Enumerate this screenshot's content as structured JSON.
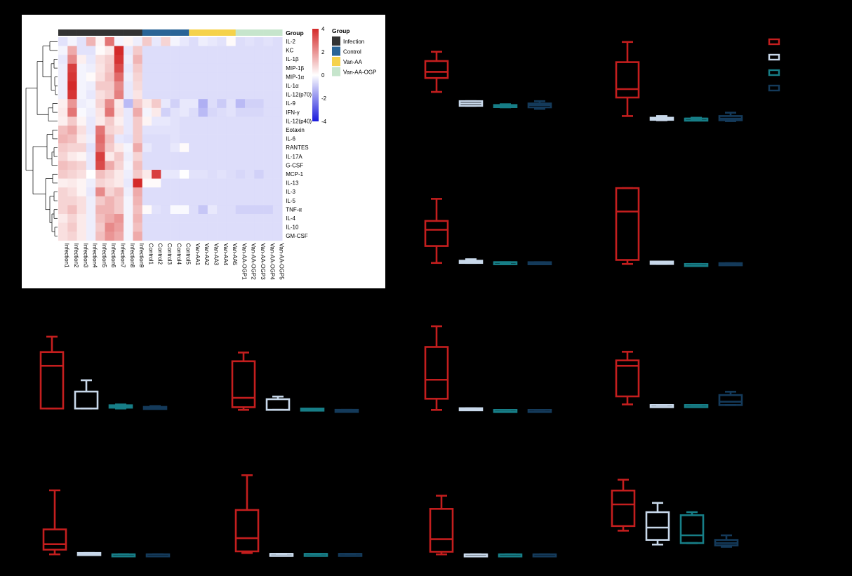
{
  "chart_data": [
    {
      "type": "heatmap",
      "title": "",
      "group_legend_title": "Group",
      "group_track_label": "Group",
      "groups": [
        {
          "name": "Infection",
          "color": "#333333"
        },
        {
          "name": "Control",
          "color": "#2a6496"
        },
        {
          "name": "Van-AA",
          "color": "#f5d24b"
        },
        {
          "name": "Van-AA-OGP",
          "color": "#c6e5cc"
        }
      ],
      "color_scale": {
        "ticks": [
          4,
          2,
          0,
          -2,
          -4
        ],
        "high": "#d42a2a",
        "mid": "#ffffff",
        "low": "#1a1adc"
      },
      "columns": [
        "Infection1",
        "Infection2",
        "Infection3",
        "Infection4",
        "Infection5",
        "Infection6",
        "Infection7",
        "Infection8",
        "Infection9",
        "Control1",
        "Control2",
        "Control3",
        "Control4",
        "Control5",
        "Van-AA1",
        "Van-AA2",
        "Van-AA3",
        "Van-AA4",
        "Van-AA5",
        "Van-AA-OGP1",
        "Van-AA-OGP2",
        "Van-AA-OGP3",
        "Van-AA-OGP4",
        "Van-AA-OGP5"
      ],
      "column_groups": [
        0,
        0,
        0,
        0,
        0,
        0,
        0,
        0,
        0,
        1,
        1,
        1,
        1,
        1,
        2,
        2,
        2,
        2,
        2,
        3,
        3,
        3,
        3,
        3
      ],
      "rows": [
        "IL-2",
        "KC",
        "IL-1β",
        "MIP-1β",
        "MIP-1α",
        "IL-1α",
        "IL-12(p70)",
        "IL-9",
        "IFN-γ",
        "IL-12(p40)",
        "Eotaxin",
        "IL-6",
        "RANTES",
        "IL-17A",
        "G-CSF",
        "MCP-1",
        "IL-13",
        "IL-3",
        "IL-5",
        "TNF-α",
        "IL-4",
        "IL-10",
        "GM-CSF"
      ],
      "values": [
        [
          -0.5,
          -0.2,
          -0.5,
          1.4,
          0.2,
          2.6,
          -0.2,
          0.2,
          -0.3,
          1.0,
          -0.4,
          0.8,
          -0.2,
          -0.4,
          -0.6,
          -0.3,
          -0.4,
          -0.5,
          0.1,
          -0.6,
          -0.5,
          -0.6,
          -0.5,
          -0.6
        ],
        [
          -0.2,
          1.6,
          -0.5,
          -0.5,
          0.1,
          0.4,
          4.0,
          -0.4,
          1.0,
          -0.6,
          -0.6,
          -0.6,
          -0.6,
          -0.6,
          -0.6,
          -0.6,
          -0.6,
          -0.6,
          -0.6,
          -0.6,
          -0.6,
          -0.6,
          -0.6,
          -0.6
        ],
        [
          -0.4,
          2.2,
          0.3,
          -0.4,
          0.6,
          0.9,
          3.8,
          -0.3,
          1.4,
          -0.6,
          -0.6,
          -0.6,
          -0.6,
          -0.6,
          -0.6,
          -0.6,
          -0.6,
          -0.6,
          -0.6,
          -0.6,
          -0.6,
          -0.6,
          -0.6,
          -0.6
        ],
        [
          -0.3,
          3.6,
          -0.2,
          -0.3,
          0.5,
          1.0,
          3.4,
          -0.4,
          1.0,
          -0.6,
          -0.6,
          -0.6,
          -0.6,
          -0.6,
          -0.6,
          -0.6,
          -0.6,
          -0.6,
          -0.6,
          -0.6,
          -0.6,
          -0.6,
          -0.6,
          -0.6
        ],
        [
          -0.3,
          3.8,
          -0.2,
          0.1,
          0.6,
          1.2,
          2.8,
          -0.3,
          0.8,
          -0.6,
          -0.6,
          -0.6,
          -0.6,
          -0.6,
          -0.6,
          -0.6,
          -0.6,
          -0.6,
          -0.6,
          -0.6,
          -0.6,
          -0.6,
          -0.6,
          -0.6
        ],
        [
          -0.3,
          4.0,
          -0.2,
          -0.3,
          1.0,
          1.0,
          2.2,
          -0.4,
          0.7,
          -0.6,
          -0.6,
          -0.6,
          -0.6,
          -0.6,
          -0.6,
          -0.6,
          -0.6,
          -0.6,
          -0.6,
          -0.6,
          -0.6,
          -0.6,
          -0.6,
          -0.6
        ],
        [
          -0.3,
          3.8,
          -0.2,
          -0.4,
          0.6,
          0.9,
          2.4,
          -0.4,
          0.5,
          -0.6,
          -0.6,
          -0.6,
          -0.6,
          -0.6,
          -0.6,
          -0.6,
          -0.6,
          -0.6,
          -0.6,
          -0.6,
          -0.6,
          -0.6,
          -0.6,
          -0.6
        ],
        [
          0.3,
          2.0,
          -0.3,
          -0.2,
          0.8,
          2.2,
          0.4,
          -1.2,
          1.0,
          0.4,
          1.0,
          -0.4,
          -0.8,
          -0.4,
          -0.4,
          -1.4,
          -0.6,
          -0.9,
          -0.5,
          -1.2,
          -0.8,
          -0.8,
          -0.6,
          -0.6
        ],
        [
          0.4,
          2.6,
          -0.1,
          -0.3,
          0.5,
          2.6,
          0.5,
          -0.4,
          1.6,
          -0.2,
          0.4,
          -0.8,
          -0.5,
          -0.4,
          -0.6,
          -1.2,
          -0.7,
          -0.6,
          -0.5,
          -0.7,
          -0.7,
          -0.7,
          -0.6,
          -0.6
        ],
        [
          0.3,
          1.0,
          0.2,
          -0.4,
          0.4,
          1.0,
          0.3,
          -0.4,
          1.0,
          0.2,
          -0.4,
          -0.4,
          -0.5,
          -0.6,
          -0.6,
          -0.6,
          -0.6,
          -0.6,
          -0.6,
          -0.6,
          -0.6,
          -0.6,
          -0.6,
          -0.6
        ],
        [
          1.2,
          1.6,
          0.6,
          -0.4,
          2.6,
          0.8,
          0.6,
          -0.4,
          1.0,
          -0.5,
          -0.5,
          -0.5,
          -0.5,
          -0.6,
          -0.6,
          -0.6,
          -0.6,
          -0.6,
          -0.6,
          -0.6,
          -0.6,
          -0.6,
          -0.6,
          -0.6
        ],
        [
          1.4,
          1.2,
          0.4,
          -0.3,
          2.8,
          1.2,
          -0.4,
          -0.5,
          1.0,
          -0.6,
          -0.6,
          -0.6,
          -0.5,
          -0.6,
          -0.6,
          -0.6,
          -0.6,
          -0.6,
          -0.6,
          -0.6,
          -0.6,
          -0.6,
          -0.6,
          -0.6
        ],
        [
          1.0,
          0.8,
          0.8,
          -0.5,
          2.6,
          1.0,
          0.4,
          -0.2,
          1.6,
          -0.4,
          -0.6,
          -0.6,
          -0.4,
          0.1,
          -0.6,
          -0.6,
          -0.6,
          -0.6,
          -0.6,
          -0.6,
          -0.6,
          -0.6,
          -0.6,
          -0.6
        ],
        [
          0.8,
          0.4,
          0.2,
          -0.4,
          3.6,
          0.4,
          1.0,
          -0.3,
          0.8,
          -0.6,
          -0.6,
          -0.6,
          -0.6,
          -0.6,
          -0.6,
          -0.6,
          -0.6,
          -0.6,
          -0.6,
          -0.6,
          -0.6,
          -0.6,
          -0.6,
          -0.6
        ],
        [
          1.2,
          1.0,
          0.8,
          -0.4,
          3.4,
          1.6,
          0.8,
          -0.2,
          1.2,
          -0.6,
          -0.6,
          -0.6,
          -0.6,
          -0.6,
          -0.6,
          -0.6,
          -0.6,
          -0.6,
          -0.6,
          -0.6,
          -0.6,
          -0.6,
          -0.6,
          -0.6
        ],
        [
          1.0,
          0.8,
          0.6,
          0.0,
          1.2,
          0.8,
          0.4,
          -0.3,
          1.0,
          0.4,
          3.6,
          -0.4,
          -0.4,
          0.0,
          -0.5,
          -0.5,
          -0.6,
          -0.5,
          -0.6,
          -0.7,
          -0.6,
          -0.8,
          -0.6,
          -0.6
        ],
        [
          0.3,
          0.4,
          0.2,
          -0.3,
          0.8,
          0.6,
          0.4,
          -0.4,
          4.0,
          0.1,
          0.1,
          -0.6,
          -0.6,
          -0.6,
          -0.6,
          -0.6,
          -0.6,
          -0.6,
          -0.6,
          -0.6,
          -0.6,
          -0.6,
          -0.6,
          -0.6
        ],
        [
          0.8,
          0.6,
          0.2,
          -0.4,
          2.2,
          0.8,
          1.2,
          -0.3,
          1.6,
          -0.6,
          -0.6,
          -0.6,
          -0.6,
          -0.6,
          -0.6,
          -0.6,
          -0.6,
          -0.6,
          -0.6,
          -0.6,
          -0.6,
          -0.6,
          -0.6,
          -0.6
        ],
        [
          0.8,
          0.8,
          0.6,
          -0.3,
          1.0,
          1.4,
          1.0,
          -0.2,
          1.4,
          -0.6,
          -0.6,
          -0.6,
          -0.6,
          -0.6,
          -0.6,
          -0.6,
          -0.6,
          -0.6,
          -0.6,
          -0.6,
          -0.6,
          -0.6,
          -0.6,
          -0.6
        ],
        [
          0.8,
          1.2,
          0.6,
          -0.3,
          1.4,
          1.4,
          1.0,
          -0.2,
          1.2,
          0.1,
          -0.5,
          -0.6,
          -0.1,
          -0.1,
          -0.6,
          -1.0,
          -0.4,
          -0.6,
          -0.6,
          -0.8,
          -0.8,
          -0.8,
          -0.8,
          -0.6
        ],
        [
          0.4,
          0.8,
          0.4,
          -0.3,
          1.2,
          1.6,
          2.0,
          -0.2,
          1.4,
          -0.6,
          -0.6,
          -0.6,
          -0.6,
          -0.6,
          -0.6,
          -0.6,
          -0.6,
          -0.6,
          -0.6,
          -0.6,
          -0.6,
          -0.6,
          -0.6,
          -0.6
        ],
        [
          0.6,
          1.0,
          0.4,
          -0.3,
          1.0,
          2.2,
          1.8,
          -0.2,
          1.2,
          -0.6,
          -0.6,
          -0.6,
          -0.6,
          -0.6,
          -0.6,
          -0.6,
          -0.6,
          -0.6,
          -0.6,
          -0.6,
          -0.6,
          -0.6,
          -0.6,
          -0.6
        ],
        [
          0.6,
          0.8,
          0.4,
          -0.3,
          1.2,
          2.0,
          1.6,
          -0.2,
          1.6,
          -0.6,
          -0.6,
          -0.6,
          -0.6,
          -0.6,
          -0.6,
          -0.6,
          -0.6,
          -0.6,
          -0.6,
          -0.6,
          -0.6,
          -0.6,
          -0.6,
          -0.6
        ]
      ]
    },
    {
      "type": "box",
      "note": "Box plots without printed axes, labels or titles; values are relative heights (0-100 scale) per group.",
      "group_colors": [
        "#c41e1e",
        "#c8d8ea",
        "#177e87",
        "#143a5a"
      ],
      "panels": [
        {
          "id": "b1",
          "boxes": [
            [
              40,
              58,
              66,
              80,
              92
            ],
            [
              22,
              22,
              25,
              28,
              28
            ],
            [
              20,
              21,
              22,
              23,
              24
            ],
            [
              18,
              20,
              23,
              25,
              28
            ]
          ]
        },
        {
          "id": "b2",
          "boxes": [
            [
              8,
              30,
              40,
              72,
              96
            ],
            [
              3,
              4,
              5,
              6,
              8
            ],
            [
              4,
              4,
              5,
              5,
              6
            ],
            [
              2,
              3,
              5,
              8,
              12
            ]
          ]
        },
        {
          "id": "b3",
          "boxes": [
            [
              5,
              28,
              50,
              62,
              92
            ],
            [
              5,
              5,
              7,
              8,
              10
            ],
            [
              5,
              5,
              6,
              6,
              6
            ],
            [
              5,
              5,
              5,
              6,
              6
            ]
          ]
        },
        {
          "id": "b4",
          "boxes": [
            [
              5,
              10,
              70,
              99,
              99
            ],
            [
              5,
              5,
              7,
              8,
              8
            ],
            [
              5,
              5,
              5,
              5,
              5
            ],
            [
              5,
              5,
              5,
              6,
              6
            ]
          ]
        },
        {
          "id": "b5",
          "boxes": [
            [
              5,
              5,
              58,
              75,
              94
            ],
            [
              5,
              5,
              5,
              26,
              40
            ],
            [
              5,
              6,
              8,
              9,
              10
            ],
            [
              5,
              5,
              6,
              7,
              8
            ]
          ]
        },
        {
          "id": "b6",
          "boxes": [
            [
              4,
              8,
              22,
              77,
              90
            ],
            [
              4,
              4,
              4,
              20,
              24
            ],
            [
              4,
              4,
              5,
              6,
              6
            ],
            [
              3,
              3,
              3,
              4,
              4
            ]
          ]
        },
        {
          "id": "b7",
          "boxes": [
            [
              3,
              16,
              38,
              76,
              100
            ],
            [
              3,
              4,
              4,
              5,
              5
            ],
            [
              3,
              3,
              3,
              3,
              3
            ],
            [
              3,
              3,
              3,
              3,
              3
            ]
          ]
        },
        {
          "id": "b8",
          "boxes": [
            [
              8,
              20,
              66,
              74,
              87
            ],
            [
              7,
              7,
              7,
              7,
              7
            ],
            [
              7,
              7,
              7,
              7,
              7
            ],
            [
              7,
              7,
              12,
              22,
              27
            ]
          ]
        },
        {
          "id": "b9",
          "boxes": [
            [
              3,
              10,
              18,
              40,
              98
            ],
            [
              3,
              3,
              3,
              5,
              5
            ],
            [
              3,
              3,
              3,
              3,
              3
            ],
            [
              3,
              3,
              3,
              3,
              3
            ]
          ]
        },
        {
          "id": "b10",
          "boxes": [
            [
              4,
              6,
              22,
              56,
              98
            ],
            [
              3,
              3,
              3,
              3,
              3
            ],
            [
              3,
              3,
              3,
              3,
              3
            ],
            [
              3,
              3,
              3,
              3,
              3
            ]
          ]
        },
        {
          "id": "b11",
          "boxes": [
            [
              3,
              7,
              26,
              72,
              92
            ],
            [
              3,
              3,
              3,
              3,
              3
            ],
            [
              3,
              3,
              3,
              3,
              3
            ],
            [
              3,
              3,
              3,
              3,
              3
            ]
          ]
        },
        {
          "id": "b12",
          "boxes": [
            [
              26,
              32,
              60,
              78,
              92
            ],
            [
              8,
              14,
              30,
              50,
              62
            ],
            [
              10,
              10,
              20,
              46,
              50
            ],
            [
              5,
              7,
              10,
              14,
              20
            ]
          ]
        }
      ]
    }
  ]
}
